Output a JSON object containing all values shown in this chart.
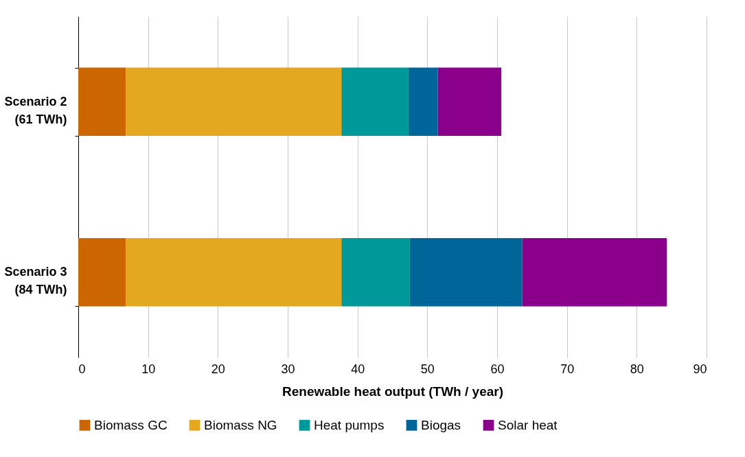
{
  "chart_data": {
    "type": "bar",
    "orientation": "horizontal",
    "stacked": true,
    "categories": [
      "Scenario 2\n(61 TWh)",
      "Scenario 3\n(84 TWh)"
    ],
    "series": [
      {
        "name": "Biomass GC",
        "color": "#cc6600",
        "values": [
          6.8,
          6.8
        ]
      },
      {
        "name": "Biomass NG",
        "color": "#e3a820",
        "values": [
          30.9,
          30.9
        ]
      },
      {
        "name": "Heat pumps",
        "color": "#009999",
        "values": [
          9.6,
          9.8
        ]
      },
      {
        "name": "Biogas",
        "color": "#006699",
        "values": [
          4.2,
          16.1
        ]
      },
      {
        "name": "Solar heat",
        "color": "#8b008b",
        "values": [
          9.1,
          20.7
        ]
      }
    ],
    "xlabel": "Renewable heat output (TWh / year)",
    "xlim": [
      0,
      90
    ],
    "xticks": [
      0,
      10,
      20,
      30,
      40,
      50,
      60,
      70,
      80,
      90
    ],
    "grid": "x",
    "legend": "bottom"
  }
}
